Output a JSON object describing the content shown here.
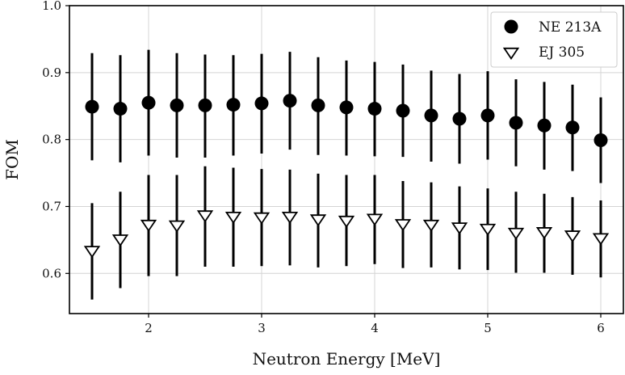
{
  "chart_data": {
    "type": "scatter",
    "title": "",
    "xlabel": "Neutron Energy [MeV]",
    "ylabel": "FOM",
    "xlim": [
      1.3,
      6.2
    ],
    "ylim": [
      0.54,
      1.0
    ],
    "xticks": [
      2,
      3,
      4,
      5,
      6
    ],
    "yticks": [
      0.6,
      0.7,
      0.8,
      0.9,
      1.0
    ],
    "xtick_labels": [
      "2",
      "3",
      "4",
      "5",
      "6"
    ],
    "ytick_labels": [
      "0.6",
      "0.7",
      "0.8",
      "0.9",
      "1.0"
    ],
    "grid": true,
    "legend_position": "top-right",
    "x": [
      1.5,
      1.75,
      2.0,
      2.25,
      2.5,
      2.75,
      3.0,
      3.25,
      3.5,
      3.75,
      4.0,
      4.25,
      4.5,
      4.75,
      5.0,
      5.25,
      5.5,
      5.75,
      6.0
    ],
    "series": [
      {
        "name": "NE 213A",
        "marker": "circle",
        "color": "#000000",
        "values": [
          0.849,
          0.846,
          0.855,
          0.851,
          0.851,
          0.852,
          0.854,
          0.858,
          0.851,
          0.848,
          0.846,
          0.843,
          0.836,
          0.831,
          0.836,
          0.825,
          0.821,
          0.818,
          0.799
        ],
        "yerr_low": [
          0.769,
          0.766,
          0.776,
          0.773,
          0.773,
          0.776,
          0.779,
          0.785,
          0.777,
          0.776,
          0.775,
          0.774,
          0.767,
          0.764,
          0.77,
          0.76,
          0.755,
          0.753,
          0.735
        ],
        "yerr_high": [
          0.929,
          0.926,
          0.934,
          0.929,
          0.927,
          0.926,
          0.928,
          0.931,
          0.923,
          0.918,
          0.916,
          0.912,
          0.903,
          0.898,
          0.902,
          0.89,
          0.886,
          0.882,
          0.863
        ]
      },
      {
        "name": "EJ 305",
        "marker": "triangle-down",
        "color": "#000000",
        "values": [
          0.635,
          0.652,
          0.674,
          0.673,
          0.688,
          0.686,
          0.685,
          0.686,
          0.682,
          0.68,
          0.683,
          0.675,
          0.674,
          0.67,
          0.668,
          0.662,
          0.663,
          0.658,
          0.654
        ],
        "yerr_low": [
          0.561,
          0.578,
          0.596,
          0.596,
          0.61,
          0.61,
          0.611,
          0.612,
          0.609,
          0.611,
          0.614,
          0.608,
          0.609,
          0.606,
          0.605,
          0.601,
          0.601,
          0.598,
          0.594
        ],
        "yerr_high": [
          0.705,
          0.722,
          0.747,
          0.747,
          0.76,
          0.758,
          0.756,
          0.755,
          0.749,
          0.747,
          0.747,
          0.738,
          0.736,
          0.73,
          0.727,
          0.722,
          0.719,
          0.714,
          0.709
        ]
      }
    ]
  }
}
